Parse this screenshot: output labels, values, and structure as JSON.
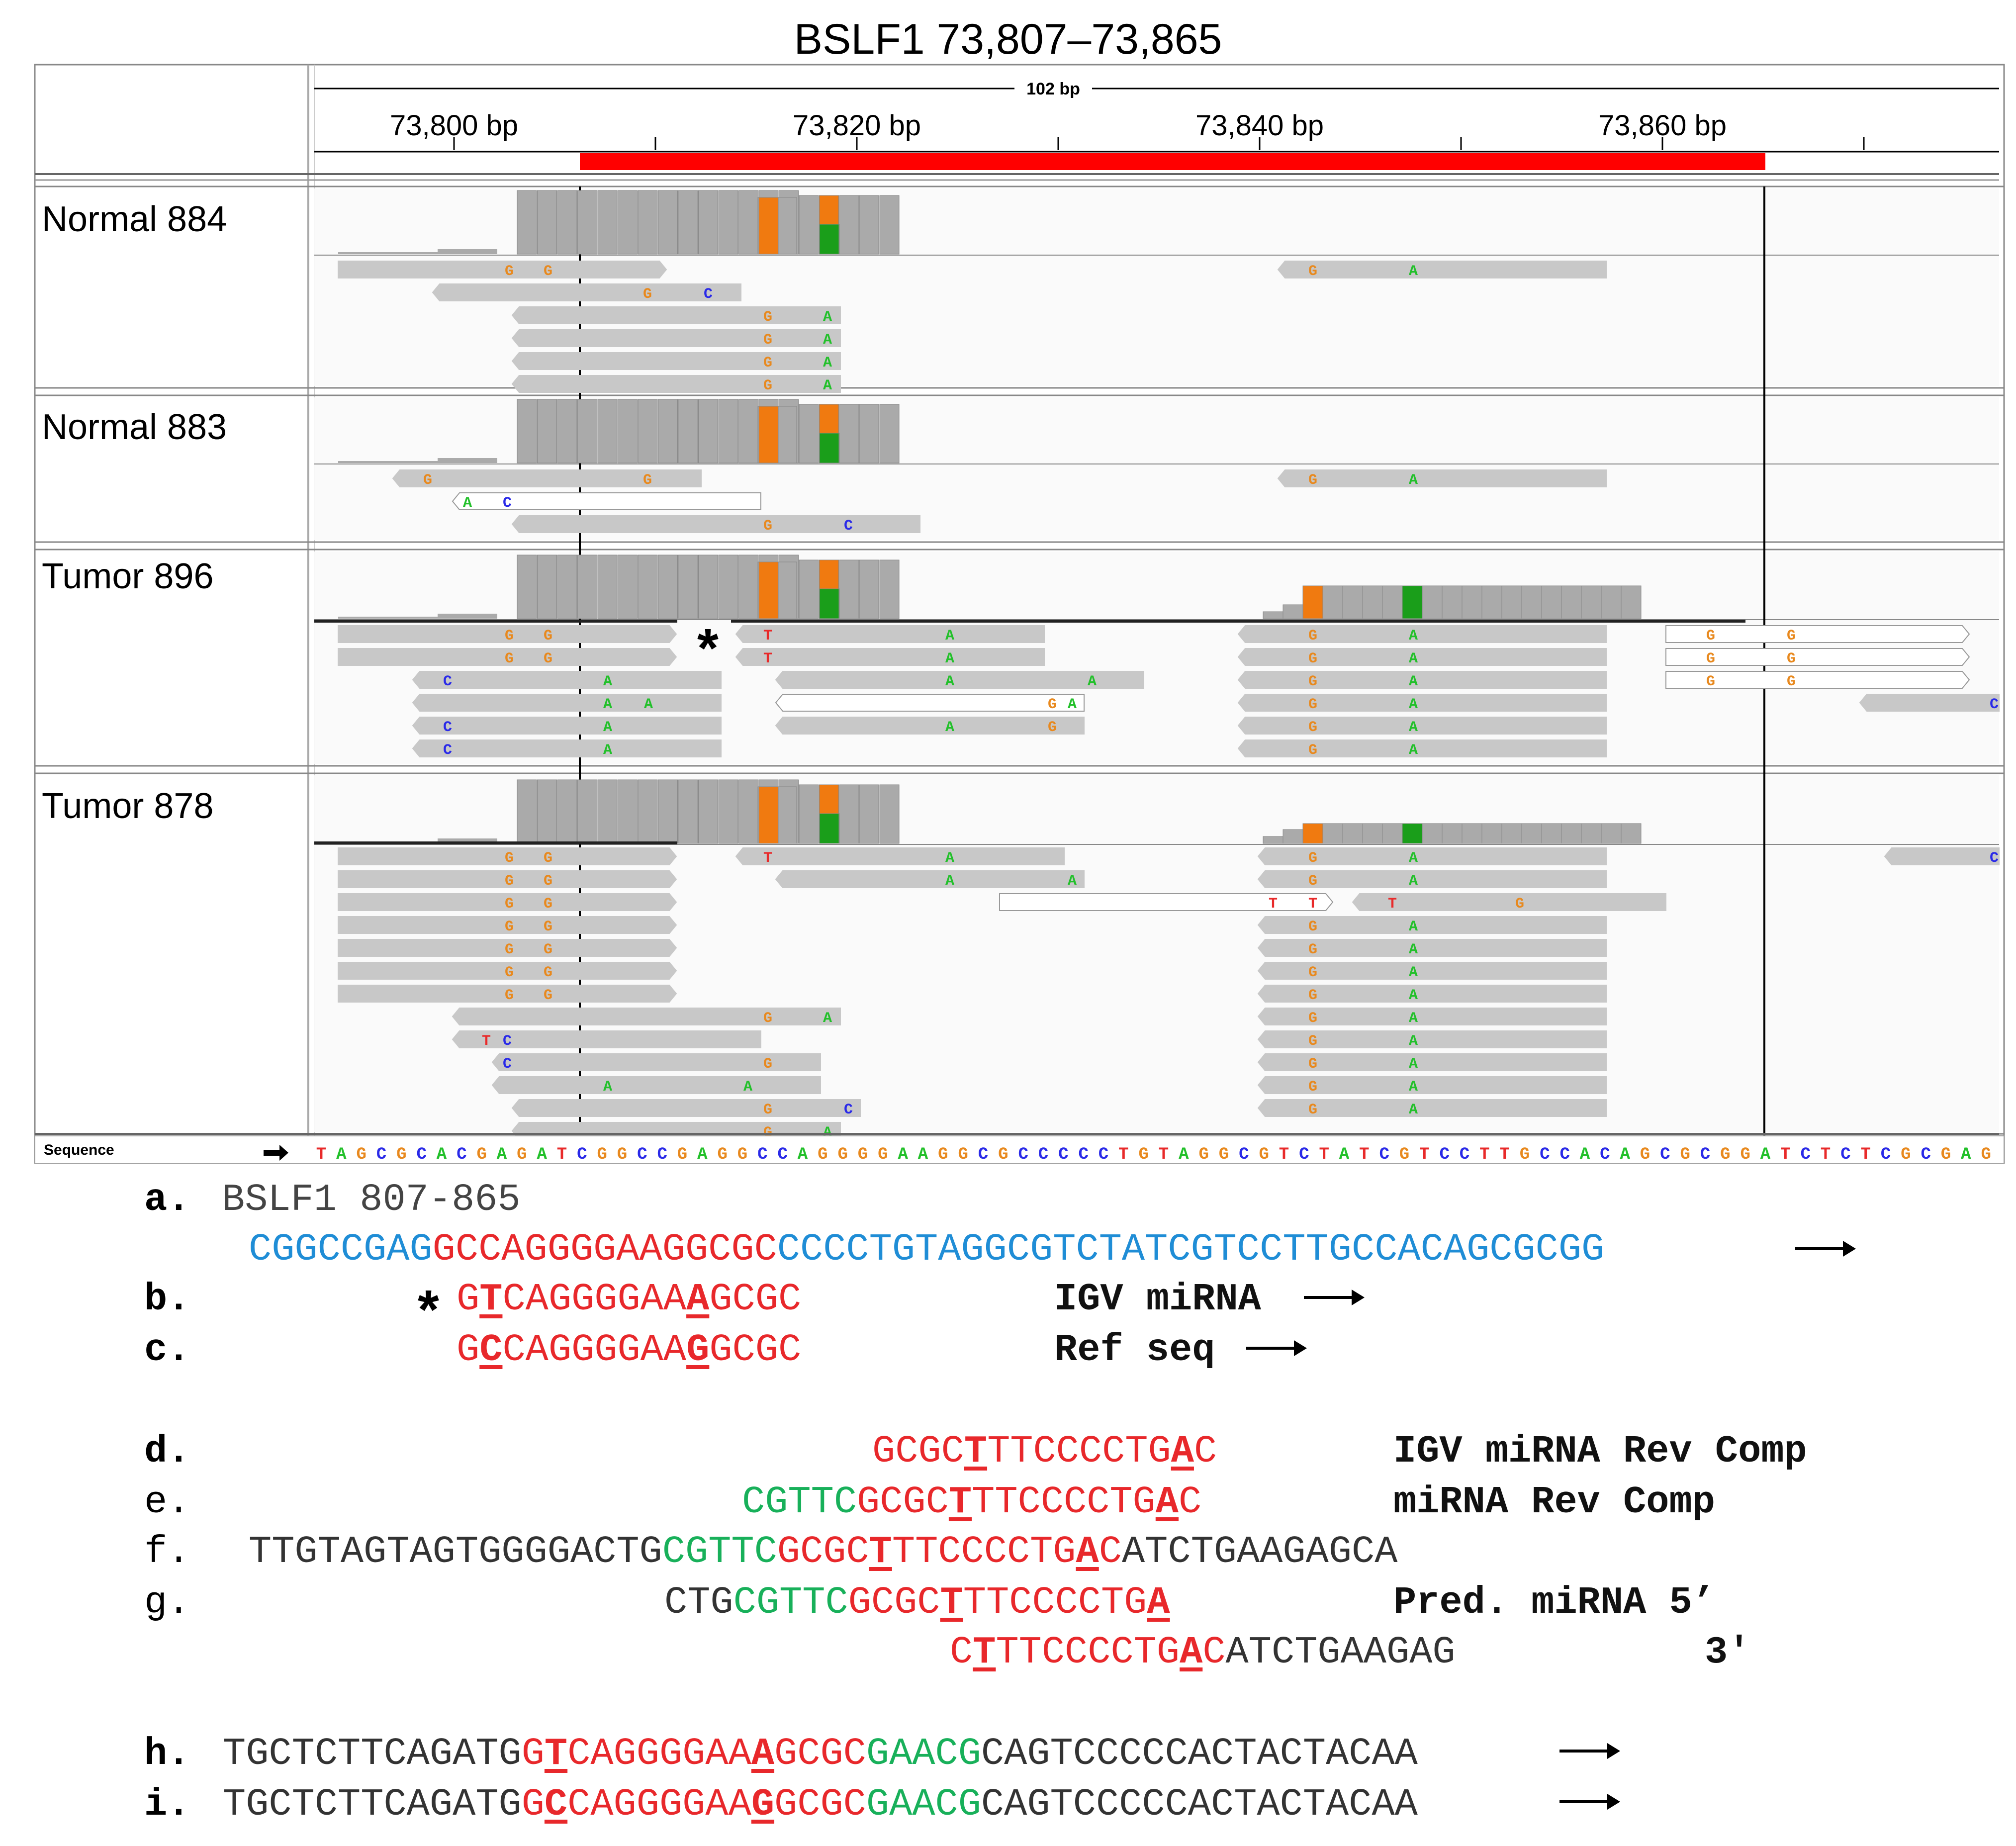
{
  "igv": {
    "title": "BSLF1 73,807–73,865",
    "ruler": {
      "span_label": "102 bp",
      "ticks": [
        "73,800 bp",
        "73,820 bp",
        "73,840 bp",
        "73,860 bp"
      ]
    },
    "tracks": [
      {
        "name": "Normal 884"
      },
      {
        "name": "Normal 883"
      },
      {
        "name": "Tumor 896"
      },
      {
        "name": "Tumor 878"
      }
    ],
    "sequence_label": "Sequence",
    "sequence": "TAGCGCACGAGATCGGCCGAGGCCAGGGGAAGGCGCCCCCTGTAGGCGTCTATCGTCCTTGCCACAGCGCGGATCTCTCGCGAG",
    "base_colors": {
      "A": "#22c02a",
      "C": "#2a2ae8",
      "G": "#e8891e",
      "T": "#e82a2a"
    },
    "asterisk": "*"
  },
  "annotations": {
    "a": {
      "tag": "a.",
      "header": "BSLF1 807-865",
      "segments": [
        [
          "CGGCCGAG",
          "blue"
        ],
        [
          "GCCAGGGGAAGGCGC",
          "red"
        ],
        [
          "CCCCTGTAGGCGTCTATCGTCCTTGCCACAGCGCGG",
          "blue"
        ]
      ]
    },
    "b": {
      "tag": "b.",
      "star": "*",
      "segments": [
        [
          "G",
          "red"
        ],
        [
          "T",
          "redu"
        ],
        [
          "CAGGGGAA",
          "red"
        ],
        [
          "A",
          "redu"
        ],
        [
          "GCGC",
          "red"
        ]
      ],
      "label": "IGV miRNA"
    },
    "c": {
      "tag": "c.",
      "segments": [
        [
          "G",
          "red"
        ],
        [
          "C",
          "redu"
        ],
        [
          "CAGGGGAA",
          "red"
        ],
        [
          "G",
          "redu"
        ],
        [
          "GCGC",
          "red"
        ]
      ],
      "label": "Ref seq"
    },
    "d": {
      "tag": "d.",
      "segments": [
        [
          "GCGC",
          "red"
        ],
        [
          "T",
          "redu"
        ],
        [
          "TTCCCCTG",
          "red"
        ],
        [
          "A",
          "redu"
        ],
        [
          "C",
          "red"
        ]
      ],
      "label": "IGV miRNA Rev Comp"
    },
    "e": {
      "tag": "e.",
      "segments": [
        [
          "CGTTC",
          "grn"
        ],
        [
          "GCGC",
          "red"
        ],
        [
          "T",
          "redu"
        ],
        [
          "TTCCCCTG",
          "red"
        ],
        [
          "A",
          "redu"
        ],
        [
          "C",
          "red"
        ]
      ],
      "label": "miRNA Rev Comp"
    },
    "f": {
      "tag": "f.",
      "segments": [
        [
          "TTGTAGTAGTGGGGACTG",
          "blk"
        ],
        [
          "CGTTC",
          "grn"
        ],
        [
          "GCGC",
          "red"
        ],
        [
          "T",
          "redu"
        ],
        [
          "TTCCCCTG",
          "red"
        ],
        [
          "A",
          "redu"
        ],
        [
          "C",
          "red"
        ],
        [
          "ATCTGAAGAGCA",
          "blk"
        ]
      ]
    },
    "g": {
      "tag": "g.",
      "segments": [
        [
          "CTG",
          "blk"
        ],
        [
          "CGTTC",
          "grn"
        ],
        [
          "GCGC",
          "red"
        ],
        [
          "T",
          "redu"
        ],
        [
          "TTCCCCTG",
          "red"
        ],
        [
          "A",
          "redu"
        ]
      ],
      "label": "Pred. miRNA 5’"
    },
    "g2": {
      "segments": [
        [
          "C",
          "red"
        ],
        [
          "T",
          "redu"
        ],
        [
          "TTCCCCTG",
          "red"
        ],
        [
          "A",
          "redu"
        ],
        [
          "C",
          "red"
        ],
        [
          "ATCTGAAGAG",
          "blk"
        ]
      ],
      "label": "3'"
    },
    "h": {
      "tag": "h.",
      "segments": [
        [
          "TGCTCTTCAGATG",
          "blk"
        ],
        [
          "G",
          "red"
        ],
        [
          "T",
          "redu"
        ],
        [
          "CAGGGGAA",
          "red"
        ],
        [
          "A",
          "redu"
        ],
        [
          "GCGC",
          "red"
        ],
        [
          "GAACG",
          "grn"
        ],
        [
          "CAGTCCCCCACTACTACAA",
          "blk"
        ]
      ]
    },
    "i": {
      "tag": "i.",
      "segments": [
        [
          "TGCTCTTCAGATG",
          "blk"
        ],
        [
          "G",
          "red"
        ],
        [
          "C",
          "redu"
        ],
        [
          "CAGGGGAA",
          "red"
        ],
        [
          "G",
          "redu"
        ],
        [
          "GCGC",
          "red"
        ],
        [
          "GAACG",
          "grn"
        ],
        [
          "CAGTCCCCCACTACTACAA",
          "blk"
        ]
      ]
    }
  }
}
